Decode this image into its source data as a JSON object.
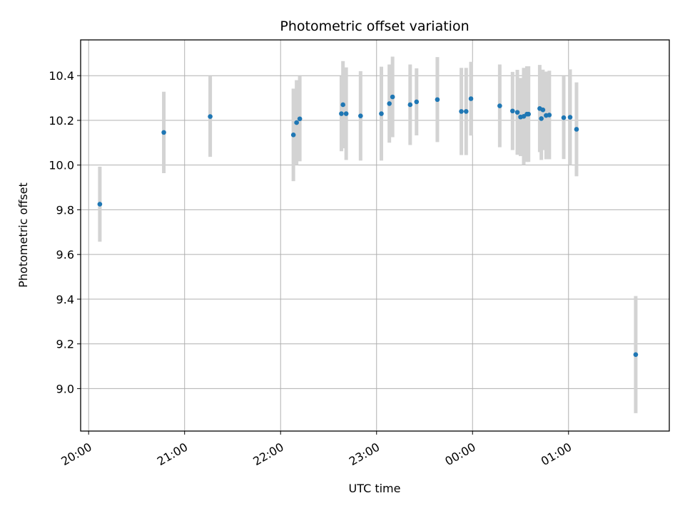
{
  "chart_data": {
    "type": "scatter",
    "title": "Photometric offset variation",
    "xlabel": "UTC time",
    "ylabel": "Photometric offset",
    "grid": true,
    "legend": "none",
    "x_axis": "time",
    "x_ticks": [
      "20:00",
      "21:00",
      "22:00",
      "23:00",
      "00:00",
      "01:00"
    ],
    "y_ticks": [
      "9.0",
      "9.2",
      "9.4",
      "9.6",
      "9.8",
      "10.0",
      "10.2",
      "10.4"
    ],
    "xlim": [
      "19:55",
      "02:03"
    ],
    "ylim": [
      8.81,
      10.56
    ],
    "marker_color": "#1f77b4",
    "errorbar_color": "#d3d3d3",
    "series": [
      {
        "x": [
          "20:07",
          "20:47",
          "21:16",
          "22:08",
          "22:10",
          "22:12",
          "22:38",
          "22:39",
          "22:41",
          "22:50",
          "23:03",
          "23:08",
          "23:10",
          "23:21",
          "23:25",
          "23:38",
          "23:53",
          "23:56",
          "23:59",
          "00:17",
          "00:25",
          "00:28",
          "00:30",
          "00:32",
          "00:34",
          "00:35",
          "00:42",
          "00:43",
          "00:44",
          "00:46",
          "00:48",
          "00:57",
          "01:01",
          "01:05",
          "01:42"
        ],
        "y": [
          9.825,
          10.146,
          10.217,
          10.135,
          10.19,
          10.207,
          10.23,
          10.27,
          10.23,
          10.22,
          10.23,
          10.275,
          10.305,
          10.27,
          10.283,
          10.293,
          10.24,
          10.24,
          10.297,
          10.265,
          10.242,
          10.236,
          10.215,
          10.218,
          10.228,
          10.228,
          10.253,
          10.208,
          10.247,
          10.222,
          10.224,
          10.212,
          10.214,
          10.16,
          9.152
        ],
        "yerr": [
          0.168,
          0.182,
          0.18,
          0.207,
          0.19,
          0.19,
          0.168,
          0.195,
          0.207,
          0.2,
          0.21,
          0.175,
          0.18,
          0.18,
          0.15,
          0.19,
          0.195,
          0.195,
          0.165,
          0.185,
          0.175,
          0.19,
          0.175,
          0.217,
          0.214,
          0.214,
          0.195,
          0.185,
          0.18,
          0.196,
          0.198,
          0.185,
          0.214,
          0.21,
          0.262
        ]
      }
    ]
  }
}
